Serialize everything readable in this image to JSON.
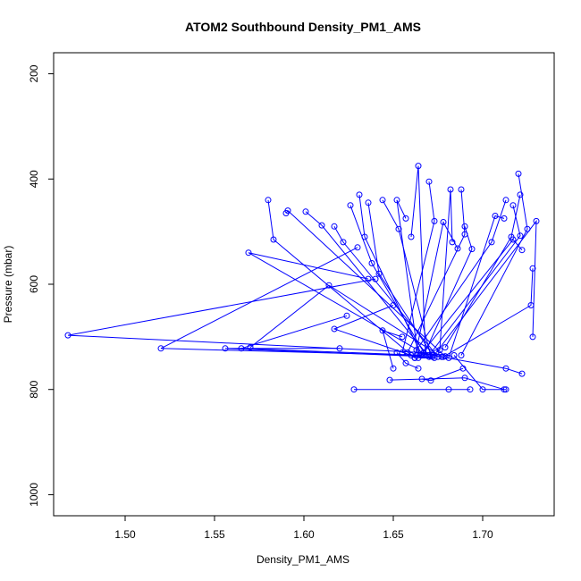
{
  "chart_data": {
    "type": "line",
    "title": "ATOM2 Southbound Density_PM1_AMS",
    "xlabel": "Density_PM1_AMS",
    "ylabel": "Pressure (mbar)",
    "xlim": [
      1.46,
      1.74
    ],
    "ylim": [
      1040,
      160
    ],
    "y_reversed": true,
    "x_ticks": [
      1.5,
      1.55,
      1.6,
      1.65,
      1.7
    ],
    "x_tick_labels": [
      "1.50",
      "1.55",
      "1.60",
      "1.65",
      "1.70"
    ],
    "y_ticks": [
      200,
      400,
      600,
      800,
      1000
    ],
    "y_tick_labels": [
      "200",
      "400",
      "600",
      "800",
      "1000"
    ],
    "grid": false,
    "series_color": "#0000ff",
    "marker": "open-circle",
    "series": [
      {
        "x": [
          1.684,
          1.7,
          1.713
        ],
        "y": [
          735,
          800,
          800
        ]
      },
      {
        "x": [
          1.672,
          1.713,
          1.722
        ],
        "y": [
          735,
          760,
          770
        ]
      },
      {
        "x": [
          1.678,
          1.727,
          1.728
        ],
        "y": [
          738,
          640,
          570
        ]
      },
      {
        "x": [
          1.674,
          1.73,
          1.728
        ],
        "y": [
          730,
          480,
          700
        ]
      },
      {
        "x": [
          1.665,
          1.717,
          1.722
        ],
        "y": [
          735,
          515,
          535
        ]
      },
      {
        "x": [
          1.688,
          1.725,
          1.72
        ],
        "y": [
          735,
          495,
          390
        ]
      },
      {
        "x": [
          1.663,
          1.705,
          1.713
        ],
        "y": [
          725,
          520,
          440
        ]
      },
      {
        "x": [
          1.681,
          1.707,
          1.712
        ],
        "y": [
          740,
          470,
          475
        ]
      },
      {
        "x": [
          1.67,
          1.721,
          1.717
        ],
        "y": [
          735,
          508,
          450
        ]
      },
      {
        "x": [
          1.679,
          1.716,
          1.721
        ],
        "y": [
          720,
          510,
          430
        ]
      },
      {
        "x": [
          1.658,
          1.69,
          1.688
        ],
        "y": [
          730,
          505,
          420
        ]
      },
      {
        "x": [
          1.676,
          1.682,
          1.683
        ],
        "y": [
          725,
          420,
          520
        ]
      },
      {
        "x": [
          1.667,
          1.694,
          1.69
        ],
        "y": [
          735,
          533,
          490
        ]
      },
      {
        "x": [
          1.662,
          1.678,
          1.686
        ],
        "y": [
          740,
          482,
          532
        ]
      },
      {
        "x": [
          1.655,
          1.673,
          1.67
        ],
        "y": [
          730,
          480,
          405
        ]
      },
      {
        "x": [
          1.668,
          1.664,
          1.66
        ],
        "y": [
          735,
          375,
          510
        ]
      },
      {
        "x": [
          1.664,
          1.652,
          1.657
        ],
        "y": [
          740,
          440,
          475
        ]
      },
      {
        "x": [
          1.671,
          1.653,
          1.644
        ],
        "y": [
          737,
          495,
          440
        ]
      },
      {
        "x": [
          1.666,
          1.634,
          1.631
        ],
        "y": [
          735,
          510,
          430
        ]
      },
      {
        "x": [
          1.673,
          1.642,
          1.636
        ],
        "y": [
          740,
          580,
          445
        ]
      },
      {
        "x": [
          1.668,
          1.638,
          1.626
        ],
        "y": [
          735,
          560,
          450
        ]
      },
      {
        "x": [
          1.675,
          1.622,
          1.617
        ],
        "y": [
          738,
          520,
          490
        ]
      },
      {
        "x": [
          1.67,
          1.61,
          1.601
        ],
        "y": [
          738,
          488,
          462
        ]
      },
      {
        "x": [
          1.679,
          1.591,
          1.59
        ],
        "y": [
          737,
          460,
          465
        ]
      },
      {
        "x": [
          1.662,
          1.583,
          1.58
        ],
        "y": [
          740,
          515,
          440
        ]
      },
      {
        "x": [
          1.669,
          1.569,
          1.636
        ],
        "y": [
          735,
          540,
          590
        ]
      },
      {
        "x": [
          1.677,
          1.614,
          1.57
        ],
        "y": [
          738,
          602,
          720
        ]
      },
      {
        "x": [
          1.666,
          1.565,
          1.624
        ],
        "y": [
          735,
          722,
          660
        ]
      },
      {
        "x": [
          1.672,
          1.556,
          1.62
        ],
        "y": [
          738,
          722,
          722
        ]
      },
      {
        "x": [
          1.663,
          1.52,
          1.63
        ],
        "y": [
          735,
          722,
          530
        ]
      },
      {
        "x": [
          1.667,
          1.468,
          1.64
        ],
        "y": [
          730,
          697,
          590
        ]
      },
      {
        "x": [
          1.66,
          1.617,
          1.65
        ],
        "y": [
          735,
          685,
          640
        ]
      },
      {
        "x": [
          1.65,
          1.644,
          1.655
        ],
        "y": [
          760,
          688,
          700
        ]
      },
      {
        "x": [
          1.628,
          1.681,
          1.693
        ],
        "y": [
          800,
          800,
          800
        ]
      },
      {
        "x": [
          1.648,
          1.69,
          1.712
        ],
        "y": [
          782,
          778,
          800
        ]
      },
      {
        "x": [
          1.666,
          1.671,
          1.689
        ],
        "y": [
          780,
          783,
          760
        ]
      },
      {
        "x": [
          1.652,
          1.657,
          1.664
        ],
        "y": [
          730,
          750,
          760
        ]
      }
    ]
  }
}
